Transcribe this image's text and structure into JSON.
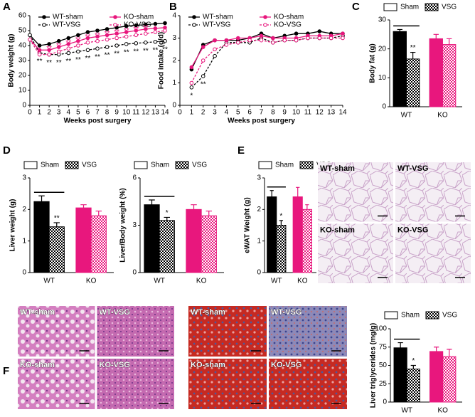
{
  "panel_labels": [
    "A",
    "B",
    "C",
    "D",
    "E",
    "F"
  ],
  "chart_data": [
    {
      "type": "line",
      "ylabel": "Body weight (g)",
      "xlabel": "Weeks post surgery",
      "x": [
        0,
        1,
        2,
        3,
        4,
        5,
        6,
        7,
        8,
        9,
        10,
        11,
        12,
        13,
        14
      ],
      "xlim": [
        0,
        14
      ],
      "xticks": [
        0,
        1,
        2,
        3,
        4,
        5,
        6,
        7,
        8,
        9,
        10,
        11,
        12,
        13,
        14
      ],
      "ylim": [
        0,
        60
      ],
      "yticks": [
        0,
        10,
        20,
        30,
        40,
        50,
        60
      ],
      "series": [
        {
          "name": "WT-sham",
          "color": "#000000",
          "dashed": false,
          "filled": true,
          "values": [
            47,
            40,
            41,
            43,
            45,
            47,
            49,
            50,
            51,
            52,
            53,
            53.5,
            54,
            54.5,
            55
          ]
        },
        {
          "name": "WT-VSG",
          "color": "#000000",
          "dashed": true,
          "filled": false,
          "values": [
            47,
            35,
            34,
            34,
            35,
            36,
            37,
            38,
            39,
            40,
            41,
            41.5,
            42,
            42.5,
            43
          ]
        },
        {
          "name": "KO-sham",
          "color": "#e8177d",
          "dashed": false,
          "filled": true,
          "values": [
            44,
            37,
            37,
            39,
            41,
            43,
            45,
            46,
            47,
            48,
            49,
            50,
            51,
            51.5,
            52
          ]
        },
        {
          "name": "KO-VSG",
          "color": "#e8177d",
          "dashed": true,
          "filled": false,
          "values": [
            44,
            34,
            34,
            36,
            38,
            40,
            42,
            43,
            44,
            45,
            46,
            47,
            48,
            49,
            50
          ]
        }
      ],
      "annotations_wt": [
        null,
        "**",
        "**",
        "**",
        "**",
        "**",
        "**",
        "**",
        "**",
        "**",
        "**",
        "**",
        "**",
        "**",
        "**"
      ],
      "annotations_ko": [
        null,
        null,
        "**",
        "**",
        "**",
        "**",
        "**",
        "**",
        "**",
        "**",
        "**",
        "**",
        "**",
        null,
        null
      ]
    },
    {
      "type": "line",
      "ylabel": "Food intake (g/d)",
      "xlabel": "Weeks post surgery",
      "x": [
        0,
        1,
        2,
        3,
        4,
        5,
        6,
        7,
        8,
        9,
        10,
        11,
        12,
        13,
        14
      ],
      "xlim": [
        0,
        14
      ],
      "xticks": [
        0,
        1,
        2,
        3,
        4,
        5,
        6,
        7,
        8,
        9,
        10,
        11,
        12,
        13,
        14
      ],
      "ylim": [
        0,
        4
      ],
      "yticks": [
        0,
        1,
        2,
        3,
        4
      ],
      "series": [
        {
          "name": "WT-sham",
          "color": "#000000",
          "dashed": false,
          "filled": true,
          "values": [
            null,
            1.6,
            2.7,
            2.9,
            2.9,
            2.9,
            3.0,
            3.2,
            3.0,
            3.1,
            3.2,
            3.2,
            3.3,
            3.2,
            3.2
          ]
        },
        {
          "name": "WT-VSG",
          "color": "#000000",
          "dashed": true,
          "filled": false,
          "values": [
            null,
            0.8,
            1.3,
            2.2,
            2.8,
            2.8,
            2.8,
            3.0,
            2.8,
            2.9,
            2.9,
            3.0,
            3.0,
            3.0,
            3.1
          ]
        },
        {
          "name": "KO-sham",
          "color": "#e8177d",
          "dashed": false,
          "filled": true,
          "values": [
            null,
            1.7,
            2.6,
            2.9,
            2.9,
            3.0,
            3.0,
            3.1,
            3.0,
            3.0,
            3.0,
            3.1,
            3.1,
            3.1,
            3.2
          ]
        },
        {
          "name": "KO-VSG",
          "color": "#e8177d",
          "dashed": true,
          "filled": false,
          "values": [
            null,
            1.0,
            2.0,
            2.5,
            2.7,
            2.8,
            2.9,
            2.9,
            2.8,
            2.9,
            2.9,
            3.0,
            3.0,
            3.0,
            3.0
          ]
        }
      ],
      "annotations_wt": [
        null,
        "*",
        "**",
        null,
        null,
        null,
        null,
        null,
        null,
        null,
        null,
        null,
        null,
        null,
        null
      ],
      "annotations_ko": [
        null,
        null,
        null,
        null,
        null,
        null,
        null,
        null,
        null,
        null,
        null,
        null,
        null,
        null,
        null
      ]
    },
    {
      "type": "bar",
      "ylabel": "Body fat (g)",
      "categories": [
        "WT",
        "KO"
      ],
      "group_colors": [
        "#000000",
        "#e8177d"
      ],
      "ylim": [
        0,
        30
      ],
      "yticks": [
        0,
        10,
        20,
        30
      ],
      "series": [
        {
          "name": "Sham",
          "values": [
            26,
            23.5
          ],
          "errors": [
            0.7,
            1.5
          ]
        },
        {
          "name": "VSG",
          "values": [
            16.5,
            21.5
          ],
          "errors": [
            2.3,
            2
          ]
        }
      ],
      "annotation": "**"
    },
    {
      "type": "bar",
      "ylabel": "Liver weight (g)",
      "categories": [
        "WT",
        "KO"
      ],
      "group_colors": [
        "#000000",
        "#e8177d"
      ],
      "ylim": [
        0,
        3
      ],
      "yticks": [
        0,
        1,
        2,
        3
      ],
      "series": [
        {
          "name": "Sham",
          "values": [
            2.25,
            2.05
          ],
          "errors": [
            0.18,
            0.1
          ]
        },
        {
          "name": "VSG",
          "values": [
            1.45,
            1.8
          ],
          "errors": [
            0.13,
            0.15
          ]
        }
      ],
      "annotation": "**"
    },
    {
      "type": "bar",
      "ylabel": "Liver/Body weight (%)",
      "categories": [
        "WT",
        "KO"
      ],
      "group_colors": [
        "#000000",
        "#e8177d"
      ],
      "ylim": [
        0,
        6
      ],
      "yticks": [
        0,
        3,
        6
      ],
      "series": [
        {
          "name": "Sham",
          "values": [
            4.3,
            4.0
          ],
          "errors": [
            0.3,
            0.3
          ]
        },
        {
          "name": "VSG",
          "values": [
            3.3,
            3.6
          ],
          "errors": [
            0.2,
            0.3
          ]
        }
      ],
      "annotation": "*"
    },
    {
      "type": "bar",
      "ylabel": "eWAT Weight (g)",
      "categories": [
        "WT",
        "KO"
      ],
      "group_colors": [
        "#000000",
        "#e8177d"
      ],
      "ylim": [
        0,
        3
      ],
      "yticks": [
        0,
        1,
        2,
        3
      ],
      "series": [
        {
          "name": "Sham",
          "values": [
            2.4,
            2.4
          ],
          "errors": [
            0.2,
            0.3
          ]
        },
        {
          "name": "VSG",
          "values": [
            1.5,
            2.0
          ],
          "errors": [
            0.15,
            0.15
          ]
        }
      ],
      "annotation": "*"
    },
    {
      "type": "bar",
      "ylabel": "Liver triglycerides (mg/g)",
      "categories": [
        "WT",
        "KO"
      ],
      "group_colors": [
        "#000000",
        "#e8177d"
      ],
      "ylim": [
        0,
        100
      ],
      "yticks": [
        0,
        25,
        50,
        75,
        100
      ],
      "series": [
        {
          "name": "Sham",
          "values": [
            74,
            69
          ],
          "errors": [
            7,
            6
          ]
        },
        {
          "name": "VSG",
          "values": [
            45,
            62
          ],
          "errors": [
            5,
            10
          ]
        }
      ],
      "annotation": "*"
    }
  ],
  "micrographs": [
    {
      "labels": [
        "WT-sham",
        "WT-VSG",
        "KO-sham",
        "KO-VSG"
      ]
    },
    {
      "labels": [
        "WT-sham",
        "WT-VSG",
        "KO-sham",
        "KO-VSG"
      ]
    },
    {
      "labels": [
        "WT-sham",
        "WT-VSG",
        "KO-sham",
        "KO-VSG"
      ]
    }
  ]
}
